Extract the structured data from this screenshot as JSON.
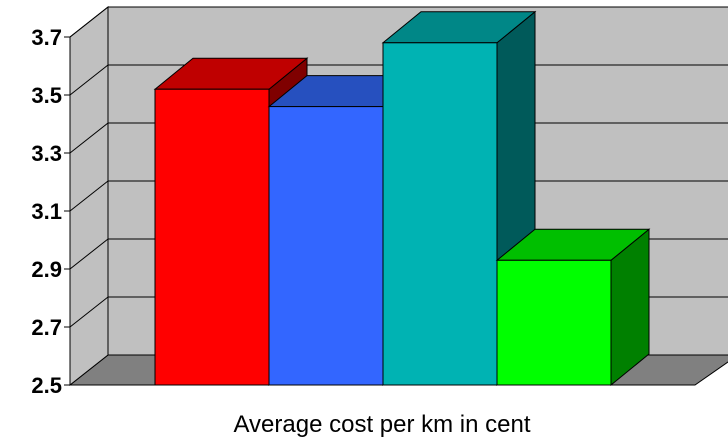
{
  "chart_data": {
    "type": "bar",
    "style": "3d-clustered",
    "title": "",
    "xlabel": "Average cost per km in cent",
    "ylabel": "",
    "ylim": [
      2.5,
      3.7
    ],
    "yticks": [
      "2.5",
      "2.7",
      "2.9",
      "3.1",
      "3.3",
      "3.5",
      "3.7"
    ],
    "grid": true,
    "legend": "none",
    "series": [
      {
        "values": [
          3.52
        ],
        "color": "#ff0000",
        "top_color": "#bf0000",
        "side_color": "#7f0000"
      },
      {
        "values": [
          3.46
        ],
        "color": "#3366ff",
        "top_color": "#2650bf",
        "side_color": "#1a337f"
      },
      {
        "values": [
          3.68
        ],
        "color": "#00b3b3",
        "top_color": "#008787",
        "side_color": "#005a5a"
      },
      {
        "values": [
          2.93
        ],
        "color": "#00ff00",
        "top_color": "#00bf00",
        "side_color": "#008000"
      }
    ],
    "wall_color": "#c0c0c0",
    "floor_color": "#808080"
  }
}
